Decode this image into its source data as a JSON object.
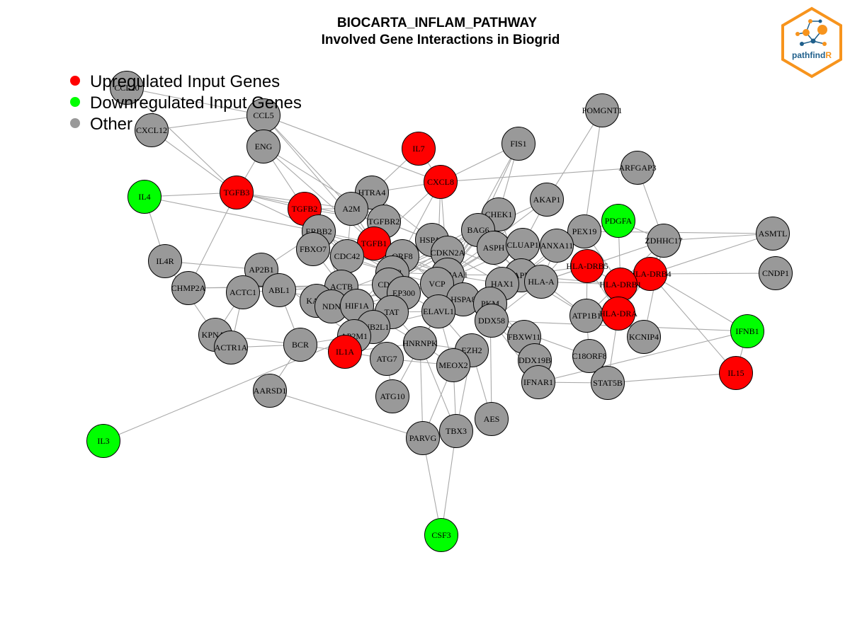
{
  "title": {
    "line1": "BIOCARTA_INFLAM_PATHWAY",
    "line2": "Involved Gene Interactions in Biogrid"
  },
  "logo": {
    "text_main": "pathfind",
    "text_accent": "R",
    "color_orange": "#f7941d",
    "color_blue": "#1f5f8b"
  },
  "legend": [
    {
      "label": "Upregulated Input Genes",
      "color": "#ff0000"
    },
    {
      "label": "Downregulated Input Genes",
      "color": "#00ff00"
    },
    {
      "label": "Other",
      "color": "#999999"
    }
  ],
  "colors": {
    "up": "#ff0000",
    "down": "#00ff00",
    "other": "#999999",
    "edge": "#a9a9a9"
  },
  "nodes": [
    {
      "id": "CCL20",
      "type": "other"
    },
    {
      "id": "CXCL12",
      "type": "other"
    },
    {
      "id": "CCL5",
      "type": "other"
    },
    {
      "id": "ENG",
      "type": "other"
    },
    {
      "id": "IL7",
      "type": "up"
    },
    {
      "id": "FIS1",
      "type": "other"
    },
    {
      "id": "POMGNT1",
      "type": "other"
    },
    {
      "id": "ARFGAP3",
      "type": "other"
    },
    {
      "id": "IL4",
      "type": "down"
    },
    {
      "id": "TGFB3",
      "type": "up"
    },
    {
      "id": "TGFB2",
      "type": "up"
    },
    {
      "id": "HTRA4",
      "type": "other"
    },
    {
      "id": "CXCL8",
      "type": "up"
    },
    {
      "id": "A2M",
      "type": "other"
    },
    {
      "id": "TGFBR2",
      "type": "other"
    },
    {
      "id": "CHEK1",
      "type": "other"
    },
    {
      "id": "AKAP1",
      "type": "other"
    },
    {
      "id": "PDGFA",
      "type": "down"
    },
    {
      "id": "ERBB2",
      "type": "other"
    },
    {
      "id": "TGFB1",
      "type": "up"
    },
    {
      "id": "HSPA5",
      "type": "other"
    },
    {
      "id": "BAG6",
      "type": "other"
    },
    {
      "id": "PEX19",
      "type": "other"
    },
    {
      "id": "ZDHHC17",
      "type": "other"
    },
    {
      "id": "ASMTL",
      "type": "other"
    },
    {
      "id": "IL4R",
      "type": "other"
    },
    {
      "id": "FBXO7",
      "type": "other"
    },
    {
      "id": "CDC42",
      "type": "other"
    },
    {
      "id": "ORF8",
      "type": "other"
    },
    {
      "id": "CDKN2A",
      "type": "other"
    },
    {
      "id": "ASPH",
      "type": "other"
    },
    {
      "id": "CLUAP1",
      "type": "other"
    },
    {
      "id": "ANXA11",
      "type": "other"
    },
    {
      "id": "HLA-DRB5",
      "type": "up"
    },
    {
      "id": "HLA-DRB4",
      "type": "up"
    },
    {
      "id": "CNDP1",
      "type": "other"
    },
    {
      "id": "AP2B1",
      "type": "other"
    },
    {
      "id": "CHMP2A",
      "type": "other"
    },
    {
      "id": "TP53",
      "type": "other"
    },
    {
      "id": "HSP90AA1",
      "type": "other"
    },
    {
      "id": "APP",
      "type": "other"
    },
    {
      "id": "HLA-DRB1",
      "type": "up"
    },
    {
      "id": "ACTC1",
      "type": "other"
    },
    {
      "id": "ABL1",
      "type": "other"
    },
    {
      "id": "CDK9",
      "type": "other"
    },
    {
      "id": "EP300",
      "type": "other"
    },
    {
      "id": "VCP",
      "type": "other"
    },
    {
      "id": "HAX1",
      "type": "other"
    },
    {
      "id": "HLA-A",
      "type": "other"
    },
    {
      "id": "ACTB",
      "type": "other"
    },
    {
      "id": "KAT5",
      "type": "other"
    },
    {
      "id": "NDN",
      "type": "other"
    },
    {
      "id": "HIF1A",
      "type": "other"
    },
    {
      "id": "HSPA8",
      "type": "other"
    },
    {
      "id": "PKM",
      "type": "other"
    },
    {
      "id": "ATP1B1",
      "type": "other"
    },
    {
      "id": "HLA-DRA",
      "type": "up"
    },
    {
      "id": "TAT",
      "type": "other"
    },
    {
      "id": "ELAVL1",
      "type": "other"
    },
    {
      "id": "DDX58",
      "type": "other"
    },
    {
      "id": "IFNB1",
      "type": "down"
    },
    {
      "id": "GNB2L1",
      "type": "other"
    },
    {
      "id": "KPNA6",
      "type": "other"
    },
    {
      "id": "AP2M1",
      "type": "other"
    },
    {
      "id": "FBXW11",
      "type": "other"
    },
    {
      "id": "KCNIP4",
      "type": "other"
    },
    {
      "id": "ACTR1A",
      "type": "other"
    },
    {
      "id": "BCR",
      "type": "other"
    },
    {
      "id": "IL1A",
      "type": "up"
    },
    {
      "id": "HNRNPK",
      "type": "other"
    },
    {
      "id": "EZH2",
      "type": "other"
    },
    {
      "id": "DDX19B",
      "type": "other"
    },
    {
      "id": "C18ORF8",
      "type": "other"
    },
    {
      "id": "ATG7",
      "type": "other"
    },
    {
      "id": "MEOX2",
      "type": "other"
    },
    {
      "id": "IL15",
      "type": "up"
    },
    {
      "id": "IFNAR1",
      "type": "other"
    },
    {
      "id": "STAT5B",
      "type": "other"
    },
    {
      "id": "AARSD1",
      "type": "other"
    },
    {
      "id": "ATG10",
      "type": "other"
    },
    {
      "id": "AES",
      "type": "other"
    },
    {
      "id": "IL3",
      "type": "down"
    },
    {
      "id": "PARVG",
      "type": "other"
    },
    {
      "id": "TBX3",
      "type": "other"
    },
    {
      "id": "CSF3",
      "type": "down"
    }
  ],
  "edges": [
    [
      "CCL20",
      "CCL5"
    ],
    [
      "CCL20",
      "TGFB3"
    ],
    [
      "CXCL12",
      "CCL5"
    ],
    [
      "CXCL12",
      "TGFB3"
    ],
    [
      "CCL5",
      "TGFB1"
    ],
    [
      "CCL5",
      "CXCL8"
    ],
    [
      "CCL5",
      "A2M"
    ],
    [
      "ENG",
      "TGFB1"
    ],
    [
      "ENG",
      "TGFB2"
    ],
    [
      "ENG",
      "TGFBR2"
    ],
    [
      "ENG",
      "TGFB3"
    ],
    [
      "IL7",
      "CXCL8"
    ],
    [
      "IL7",
      "HTRA4"
    ],
    [
      "FIS1",
      "BAG6"
    ],
    [
      "FIS1",
      "CXCL8"
    ],
    [
      "FIS1",
      "CHEK1"
    ],
    [
      "POMGNT1",
      "PEX19"
    ],
    [
      "POMGNT1",
      "AKAP1"
    ],
    [
      "ARFGAP3",
      "CXCL8"
    ],
    [
      "ARFGAP3",
      "ZDHHC17"
    ],
    [
      "IL4",
      "IL4R"
    ],
    [
      "IL4",
      "TGFB3"
    ],
    [
      "IL4",
      "ERBB2"
    ],
    [
      "TGFB3",
      "TGFBR2"
    ],
    [
      "TGFB3",
      "A2M"
    ],
    [
      "TGFB3",
      "TGFB2"
    ],
    [
      "TGFB3",
      "CHMP2A"
    ],
    [
      "TGFB2",
      "A2M"
    ],
    [
      "TGFB2",
      "TGFBR2"
    ],
    [
      "HTRA4",
      "TGFB1"
    ],
    [
      "HTRA4",
      "CXCL8"
    ],
    [
      "CXCL8",
      "TGFB1"
    ],
    [
      "CXCL8",
      "HSP90AA1"
    ],
    [
      "CXCL8",
      "TP53"
    ],
    [
      "A2M",
      "TGFB1"
    ],
    [
      "A2M",
      "CDC42"
    ],
    [
      "A2M",
      "APP"
    ],
    [
      "TGFBR2",
      "TGFB1"
    ],
    [
      "TGFBR2",
      "CDC42"
    ],
    [
      "TGFBR2",
      "HSPA5"
    ],
    [
      "TGFBR2",
      "EP300"
    ],
    [
      "CHEK1",
      "TP53"
    ],
    [
      "CHEK1",
      "HSP90AA1"
    ],
    [
      "CHEK1",
      "CDK9"
    ],
    [
      "CHEK1",
      "VCP"
    ],
    [
      "AKAP1",
      "HSP90AA1"
    ],
    [
      "AKAP1",
      "CLUAP1"
    ],
    [
      "AKAP1",
      "TP53"
    ],
    [
      "PDGFA",
      "PEX19"
    ],
    [
      "PDGFA",
      "HLA-DRB1"
    ],
    [
      "PDGFA",
      "ZDHHC17"
    ],
    [
      "ERBB2",
      "CDC42"
    ],
    [
      "ERBB2",
      "TP53"
    ],
    [
      "ERBB2",
      "HSP90AA1"
    ],
    [
      "ERBB2",
      "ACTB"
    ],
    [
      "ERBB2",
      "TGFB1"
    ],
    [
      "TGFB1",
      "TP53"
    ],
    [
      "TGFB1",
      "CDKN2A"
    ],
    [
      "TGFB1",
      "HSP90AA1"
    ],
    [
      "TGFB1",
      "ORF8"
    ],
    [
      "HSPA5",
      "VCP"
    ],
    [
      "HSPA5",
      "HSP90AA1"
    ],
    [
      "BAG6",
      "VCP"
    ],
    [
      "BAG6",
      "HSP90AA1"
    ],
    [
      "BAG6",
      "APP"
    ],
    [
      "PEX19",
      "HLA-DRB1"
    ],
    [
      "PEX19",
      "APP"
    ],
    [
      "PEX19",
      "HLA-A"
    ],
    [
      "PEX19",
      "ANXA11"
    ],
    [
      "ZDHHC17",
      "ASMTL"
    ],
    [
      "ZDHHC17",
      "HLA-DRB4"
    ],
    [
      "ZDHHC17",
      "ATP1B1"
    ],
    [
      "ZDHHC17",
      "HLA-A"
    ],
    [
      "ASMTL",
      "HLA-DRB4"
    ],
    [
      "ASMTL",
      "PEX19"
    ],
    [
      "IL4R",
      "AP2B1"
    ],
    [
      "IL4R",
      "KPNA6"
    ],
    [
      "FBXO7",
      "TP53"
    ],
    [
      "FBXO7",
      "HSP90AA1"
    ],
    [
      "FBXO7",
      "CDC42"
    ],
    [
      "CDC42",
      "ACTB"
    ],
    [
      "CDC42",
      "TP53"
    ],
    [
      "ORF8",
      "VCP"
    ],
    [
      "ORF8",
      "HSPA8"
    ],
    [
      "CDKN2A",
      "TP53"
    ],
    [
      "CDKN2A",
      "HAX1"
    ],
    [
      "CDKN2A",
      "CDK9"
    ],
    [
      "ASPH",
      "APP"
    ],
    [
      "ASPH",
      "VCP"
    ],
    [
      "CLUAP1",
      "APP"
    ],
    [
      "CLUAP1",
      "HLA-A"
    ],
    [
      "ANXA11",
      "APP"
    ],
    [
      "ANXA11",
      "HLA-A"
    ],
    [
      "HLA-DRB5",
      "HLA-DRB1"
    ],
    [
      "HLA-DRB5",
      "HLA-DRA"
    ],
    [
      "HLA-DRB5",
      "APP"
    ],
    [
      "HLA-DRB4",
      "HLA-DRB1"
    ],
    [
      "HLA-DRB4",
      "HLA-DRA"
    ],
    [
      "HLA-DRB4",
      "CNDP1"
    ],
    [
      "HLA-DRB4",
      "IFNB1"
    ],
    [
      "HLA-DRB1",
      "HLA-DRA"
    ],
    [
      "HLA-DRB1",
      "APP"
    ],
    [
      "HLA-DRB1",
      "HLA-A"
    ],
    [
      "AP2B1",
      "ACTC1"
    ],
    [
      "AP2B1",
      "AP2M1"
    ],
    [
      "AP2B1",
      "ABL1"
    ],
    [
      "CHMP2A",
      "ACTB"
    ],
    [
      "CHMP2A",
      "VCP"
    ],
    [
      "TP53",
      "EP300"
    ],
    [
      "TP53",
      "HSP90AA1"
    ],
    [
      "TP53",
      "CDK9"
    ],
    [
      "TP53",
      "VCP"
    ],
    [
      "TP53",
      "HIF1A"
    ],
    [
      "TP53",
      "KAT5"
    ],
    [
      "HSP90AA1",
      "VCP"
    ],
    [
      "HSP90AA1",
      "HSPA8"
    ],
    [
      "HSP90AA1",
      "APP"
    ],
    [
      "HSP90AA1",
      "HAX1"
    ],
    [
      "APP",
      "HLA-A"
    ],
    [
      "APP",
      "HAX1"
    ],
    [
      "APP",
      "PKM"
    ],
    [
      "APP",
      "ATP1B1"
    ],
    [
      "ACTC1",
      "ACTB"
    ],
    [
      "ACTC1",
      "ACTR1A"
    ],
    [
      "ABL1",
      "ACTB"
    ],
    [
      "ABL1",
      "BCR"
    ],
    [
      "CDK9",
      "EP300"
    ],
    [
      "CDK9",
      "HIF1A"
    ],
    [
      "EP300",
      "HIF1A"
    ],
    [
      "EP300",
      "TAT"
    ],
    [
      "EP300",
      "KAT5"
    ],
    [
      "VCP",
      "HSPA8"
    ],
    [
      "VCP",
      "ELAVL1"
    ],
    [
      "VCP",
      "FBXW11"
    ],
    [
      "HAX1",
      "HSPA8"
    ],
    [
      "HAX1",
      "HLA-A"
    ],
    [
      "HLA-A",
      "ATP1B1"
    ],
    [
      "HLA-A",
      "PKM"
    ],
    [
      "HLA-A",
      "DDX58"
    ],
    [
      "ACTB",
      "KAT5"
    ],
    [
      "ACTB",
      "NDN"
    ],
    [
      "ACTB",
      "TAT"
    ],
    [
      "ACTB",
      "HIF1A"
    ],
    [
      "KAT5",
      "NDN"
    ],
    [
      "NDN",
      "HIF1A"
    ],
    [
      "HIF1A",
      "GNB2L1"
    ],
    [
      "HIF1A",
      "TAT"
    ],
    [
      "HSPA8",
      "PKM"
    ],
    [
      "HSPA8",
      "ELAVL1"
    ],
    [
      "PKM",
      "DDX58"
    ],
    [
      "ATP1B1",
      "HLA-DRA"
    ],
    [
      "ATP1B1",
      "C18ORF8"
    ],
    [
      "TAT",
      "GNB2L1"
    ],
    [
      "TAT",
      "ELAVL1"
    ],
    [
      "TAT",
      "HNRNPK"
    ],
    [
      "ELAVL1",
      "HNRNPK"
    ],
    [
      "ELAVL1",
      "EZH2"
    ],
    [
      "DDX58",
      "IFNB1"
    ],
    [
      "DDX58",
      "DDX19B"
    ],
    [
      "GNB2L1",
      "AP2M1"
    ],
    [
      "GNB2L1",
      "IL1A"
    ],
    [
      "KPNA6",
      "ACTR1A"
    ],
    [
      "KPNA6",
      "BCR"
    ],
    [
      "KPNA6",
      "ACTC1"
    ],
    [
      "AP2M1",
      "IL1A"
    ],
    [
      "AP2M1",
      "BCR"
    ],
    [
      "FBXW11",
      "DDX19B"
    ],
    [
      "KCNIP4",
      "HLA-DRA"
    ],
    [
      "KCNIP4",
      "ZDHHC17"
    ],
    [
      "ACTR1A",
      "BCR"
    ],
    [
      "BCR",
      "IL1A"
    ],
    [
      "IL1A",
      "ATG7"
    ],
    [
      "IL1A",
      "HNRNPK"
    ],
    [
      "HNRNPK",
      "EZH2"
    ],
    [
      "HNRNPK",
      "MEOX2"
    ],
    [
      "EZH2",
      "MEOX2"
    ],
    [
      "DDX19B",
      "IFNAR1"
    ],
    [
      "C18ORF8",
      "STAT5B"
    ],
    [
      "ATG7",
      "ATG10"
    ],
    [
      "ATG7",
      "MEOX2"
    ],
    [
      "IL15",
      "STAT5B"
    ],
    [
      "IL15",
      "IFNB1"
    ],
    [
      "IL15",
      "HLA-DRB4"
    ],
    [
      "IFNAR1",
      "STAT5B"
    ],
    [
      "IFNAR1",
      "IFNB1"
    ],
    [
      "IFNAR1",
      "DDX58"
    ],
    [
      "STAT5B",
      "HLA-DRA"
    ],
    [
      "AARSD1",
      "BCR"
    ],
    [
      "AARSD1",
      "PARVG"
    ],
    [
      "ATG10",
      "ELAVL1"
    ],
    [
      "AES",
      "EZH2"
    ],
    [
      "AES",
      "PKM"
    ],
    [
      "IL3",
      "AP2M1"
    ],
    [
      "PARVG",
      "MEOX2"
    ],
    [
      "PARVG",
      "HNRNPK"
    ],
    [
      "PARVG",
      "CSF3"
    ],
    [
      "TBX3",
      "MEOX2"
    ],
    [
      "TBX3",
      "EZH2"
    ],
    [
      "TBX3",
      "HNRNPK"
    ],
    [
      "CSF3",
      "TBX3"
    ],
    [
      "TGFB1",
      "CDC42"
    ],
    [
      "A2M",
      "TP53"
    ],
    [
      "ASPH",
      "HSP90AA1"
    ],
    [
      "BAG6",
      "CDKN2A"
    ],
    [
      "CHEK1",
      "APP"
    ],
    [
      "CLUAP1",
      "VCP"
    ],
    [
      "HLA-DRB5",
      "ATP1B1"
    ],
    [
      "EP300",
      "VCP"
    ],
    [
      "CDK9",
      "ELAVL1"
    ],
    [
      "HSPA5",
      "TP53"
    ],
    [
      "ERBB2",
      "AP2B1"
    ],
    [
      "FBXO7",
      "ACTB"
    ],
    [
      "ABL1",
      "HIF1A"
    ],
    [
      "KAT5",
      "TAT"
    ],
    [
      "HIF1A",
      "HNRNPK"
    ],
    [
      "GNB2L1",
      "ELAVL1"
    ],
    [
      "PKM",
      "FBXW11"
    ],
    [
      "DDX58",
      "C18ORF8"
    ],
    [
      "MEOX2",
      "ELAVL1"
    ],
    [
      "HLA-A",
      "HLA-DRB5"
    ],
    [
      "FIS1",
      "HSP90AA1"
    ],
    [
      "CXCL8",
      "VCP"
    ],
    [
      "HTRA4",
      "HSPA5"
    ],
    [
      "TGFB2",
      "CDC42"
    ],
    [
      "TGFB3",
      "ERBB2"
    ]
  ]
}
